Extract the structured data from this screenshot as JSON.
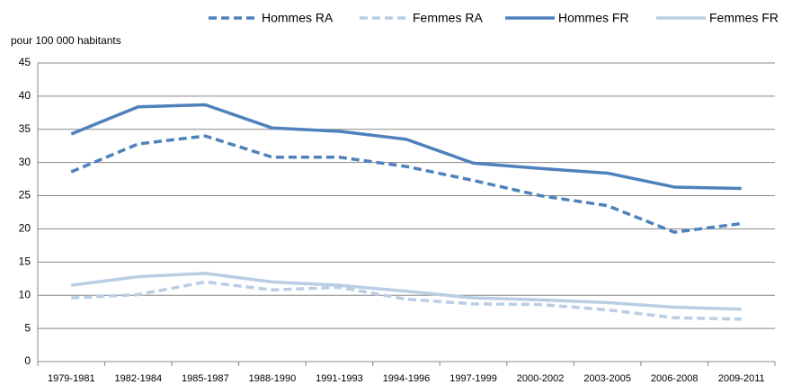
{
  "chart_data": {
    "type": "line",
    "y_label": "pour 100 000 habitants",
    "categories": [
      "1979-1981",
      "1982-1984",
      "1985-1987",
      "1988-1990",
      "1991-1993",
      "1994-1996",
      "1997-1999",
      "2000-2002",
      "2003-2005",
      "2006-2008",
      "2009-2011"
    ],
    "series": [
      {
        "name": "Hommes RA",
        "color": "#4f81bd",
        "line_style": "dashed",
        "values": [
          28.6,
          32.8,
          34.0,
          30.8,
          30.8,
          29.4,
          27.3,
          25.0,
          23.5,
          19.5,
          20.8
        ]
      },
      {
        "name": "Femmes RA",
        "color": "#b9cde5",
        "line_style": "dashed",
        "values": [
          9.6,
          10.1,
          12.0,
          10.8,
          11.2,
          9.4,
          8.7,
          8.6,
          7.8,
          6.6,
          6.4
        ]
      },
      {
        "name": "Hommes FR",
        "color": "#4f81bd",
        "line_style": "solid",
        "values": [
          34.3,
          38.4,
          38.7,
          35.2,
          34.7,
          33.5,
          29.9,
          29.1,
          28.4,
          26.3,
          26.1
        ]
      },
      {
        "name": "Femmes FR",
        "color": "#b9cde5",
        "line_style": "solid",
        "values": [
          11.5,
          12.8,
          13.3,
          12.0,
          11.5,
          10.6,
          9.6,
          9.3,
          8.9,
          8.2,
          7.9
        ]
      }
    ],
    "ylim": [
      0,
      45
    ],
    "yticks": [
      0,
      5,
      10,
      15,
      20,
      25,
      30,
      35,
      40,
      45
    ],
    "grid": true,
    "legend": "top"
  }
}
